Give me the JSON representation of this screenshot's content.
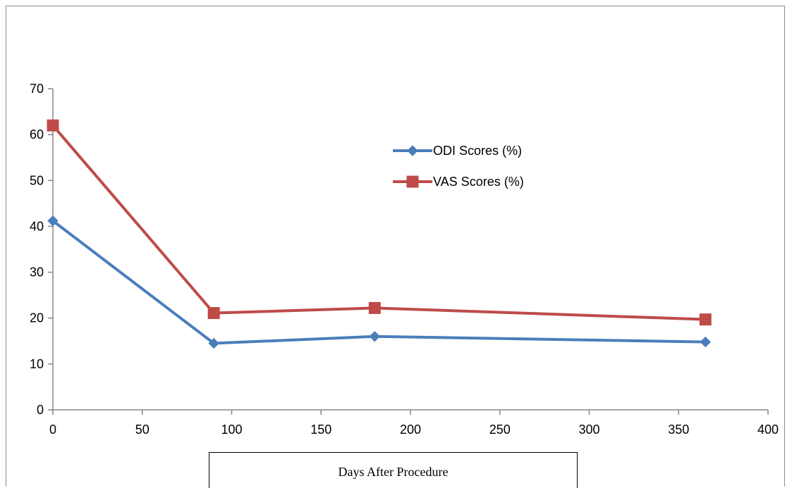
{
  "chart_data": {
    "type": "line",
    "title": "",
    "xlabel": "Days After Procedure",
    "ylabel": "",
    "xlim": [
      0,
      400
    ],
    "ylim": [
      0,
      70
    ],
    "x_ticks": [
      "0",
      "50",
      "100",
      "150",
      "200",
      "250",
      "300",
      "350",
      "400"
    ],
    "y_ticks": [
      "0",
      "10",
      "20",
      "30",
      "40",
      "50",
      "60",
      "70"
    ],
    "grid": false,
    "legend_position": "upper-middle",
    "series": [
      {
        "name": "ODI Scores (%)",
        "color": "#4a7ebb",
        "marker": "diamond",
        "x": [
          0,
          90,
          180,
          365
        ],
        "y": [
          41.2,
          14.5,
          16.0,
          14.8
        ]
      },
      {
        "name": "VAS Scores (%)",
        "color": "#be4b48",
        "marker": "square",
        "x": [
          0,
          90,
          180,
          365
        ],
        "y": [
          62.0,
          21.1,
          22.2,
          19.7
        ]
      }
    ]
  }
}
